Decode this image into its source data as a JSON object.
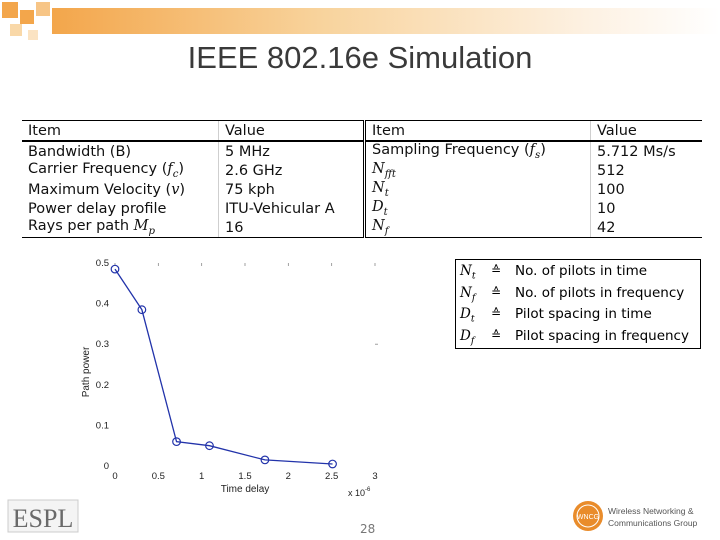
{
  "slide": {
    "title": "IEEE 802.16e Simulation",
    "page_number": "28"
  },
  "table": {
    "headers": [
      "Item",
      "Value",
      "Item",
      "Value"
    ],
    "rows": [
      [
        {
          "t": "Bandwidth (B)"
        },
        {
          "t": "5 MHz"
        },
        {
          "t": "Sampling Frequency (",
          "m": "fs",
          "e": ")"
        },
        {
          "t": "5.712 Ms/s"
        }
      ],
      [
        {
          "t": "Carrier Frequency (",
          "m": "fc",
          "e": ")"
        },
        {
          "t": "2.6 GHz"
        },
        {
          "m": "Nfft"
        },
        {
          "t": "512"
        }
      ],
      [
        {
          "t": "Maximum Velocity (",
          "m": "v",
          "e": ")"
        },
        {
          "t": "75 kph"
        },
        {
          "m": "Nt"
        },
        {
          "t": "100"
        }
      ],
      [
        {
          "t": "Power delay profile"
        },
        {
          "t": "ITU-Vehicular A"
        },
        {
          "m": "Dt"
        },
        {
          "t": "10"
        }
      ],
      [
        {
          "t": "Rays per path ",
          "m": "Mp"
        },
        {
          "t": "16"
        },
        {
          "m": "Nf"
        },
        {
          "t": "42"
        }
      ]
    ]
  },
  "legend": {
    "eq_symbol": "≙",
    "items": [
      {
        "symbol": "Nt",
        "desc": "No. of pilots in time"
      },
      {
        "symbol": "Nf",
        "desc": "No. of pilots in frequency"
      },
      {
        "symbol": "Dt",
        "desc": "Pilot spacing in time"
      },
      {
        "symbol": "Df",
        "desc": "Pilot spacing in frequency"
      }
    ]
  },
  "chart_data": {
    "type": "line",
    "xlabel": "Time delay",
    "ylabel": "Path power",
    "x_multiplier": "x 10",
    "x_multiplier_exp": "-6",
    "xlim": [
      0,
      3
    ],
    "ylim": [
      0,
      0.5
    ],
    "x_ticks": [
      "0",
      "0.5",
      "1",
      "1.5",
      "2",
      "2.5",
      "3"
    ],
    "y_ticks": [
      "0",
      "0.1",
      "0.2",
      "0.3",
      "0.4",
      "0.5"
    ],
    "series": [
      {
        "color": "#2233aa",
        "x": [
          0.0,
          0.31,
          0.71,
          1.09,
          1.73,
          2.51
        ],
        "y": [
          0.485,
          0.385,
          0.06,
          0.05,
          0.015,
          0.005
        ]
      }
    ]
  },
  "logos": {
    "espl": "ESPL",
    "wncg_line1": "Wireless Networking &",
    "wncg_line2": "Communications Group",
    "wncg_badge": "WNCG"
  },
  "colors": {
    "accent": "#f3a64b",
    "line": "#2233aa"
  }
}
